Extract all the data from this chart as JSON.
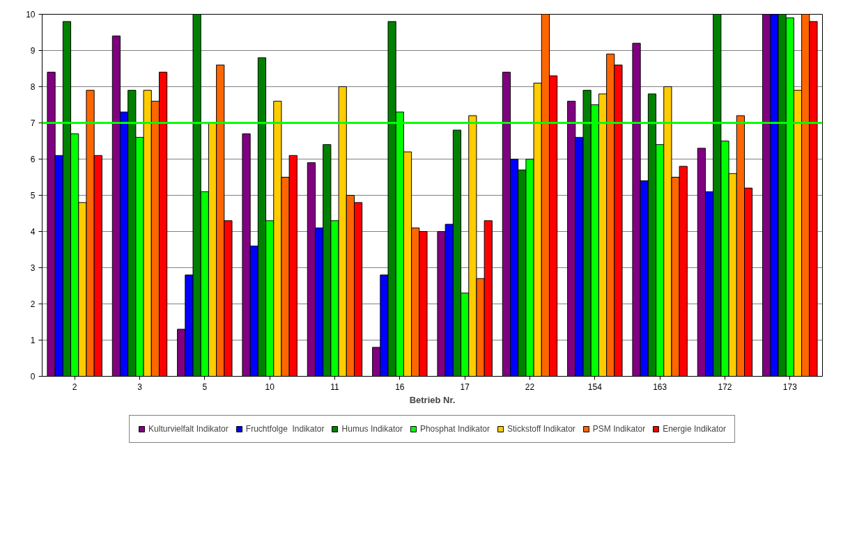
{
  "chart_data": {
    "type": "bar",
    "xlabel": "Betrieb Nr.",
    "categories": [
      "2",
      "3",
      "5",
      "10",
      "11",
      "16",
      "17",
      "22",
      "154",
      "163",
      "172",
      "173"
    ],
    "series": [
      {
        "name": "Kulturvielfalt Indikator",
        "color": "#800080",
        "values": [
          8.4,
          9.4,
          1.3,
          6.7,
          5.9,
          0.8,
          4.0,
          8.4,
          7.6,
          9.2,
          6.3,
          10
        ]
      },
      {
        "name": "Fruchtfolge  Indikator",
        "color": "#0000ff",
        "values": [
          6.1,
          7.3,
          2.8,
          3.6,
          4.1,
          2.8,
          4.2,
          6.0,
          6.6,
          5.4,
          5.1,
          10
        ]
      },
      {
        "name": "Humus Indikator",
        "color": "#008000",
        "values": [
          9.8,
          7.9,
          10,
          8.8,
          6.4,
          9.8,
          6.8,
          5.7,
          7.9,
          7.8,
          10,
          10
        ]
      },
      {
        "name": "Phosphat Indikator",
        "color": "#00ff00",
        "values": [
          6.7,
          6.6,
          5.1,
          4.3,
          4.3,
          7.3,
          2.3,
          6.0,
          7.5,
          6.4,
          6.5,
          9.9
        ]
      },
      {
        "name": "Stickstoff Indikator",
        "color": "#ffcc00",
        "values": [
          4.8,
          7.9,
          7.0,
          7.6,
          8.0,
          6.2,
          7.2,
          8.1,
          7.8,
          8.0,
          5.6,
          7.9
        ]
      },
      {
        "name": "PSM Indikator",
        "color": "#ff6600",
        "values": [
          7.9,
          7.6,
          8.6,
          5.5,
          5.0,
          4.1,
          2.7,
          10,
          8.9,
          5.5,
          7.2,
          10
        ]
      },
      {
        "name": "Energie Indikator",
        "color": "#ff0000",
        "values": [
          6.1,
          8.4,
          4.3,
          6.1,
          4.8,
          4.0,
          4.3,
          8.3,
          8.6,
          5.8,
          5.2,
          9.8
        ]
      }
    ],
    "ylim": [
      0,
      10
    ],
    "yticks": [
      0,
      1,
      2,
      3,
      4,
      5,
      6,
      7,
      8,
      9,
      10
    ],
    "grid": "y",
    "legend": "bottom",
    "ref_lines": [
      {
        "axis": "y",
        "value": 7,
        "color": "#00ff00"
      }
    ]
  }
}
